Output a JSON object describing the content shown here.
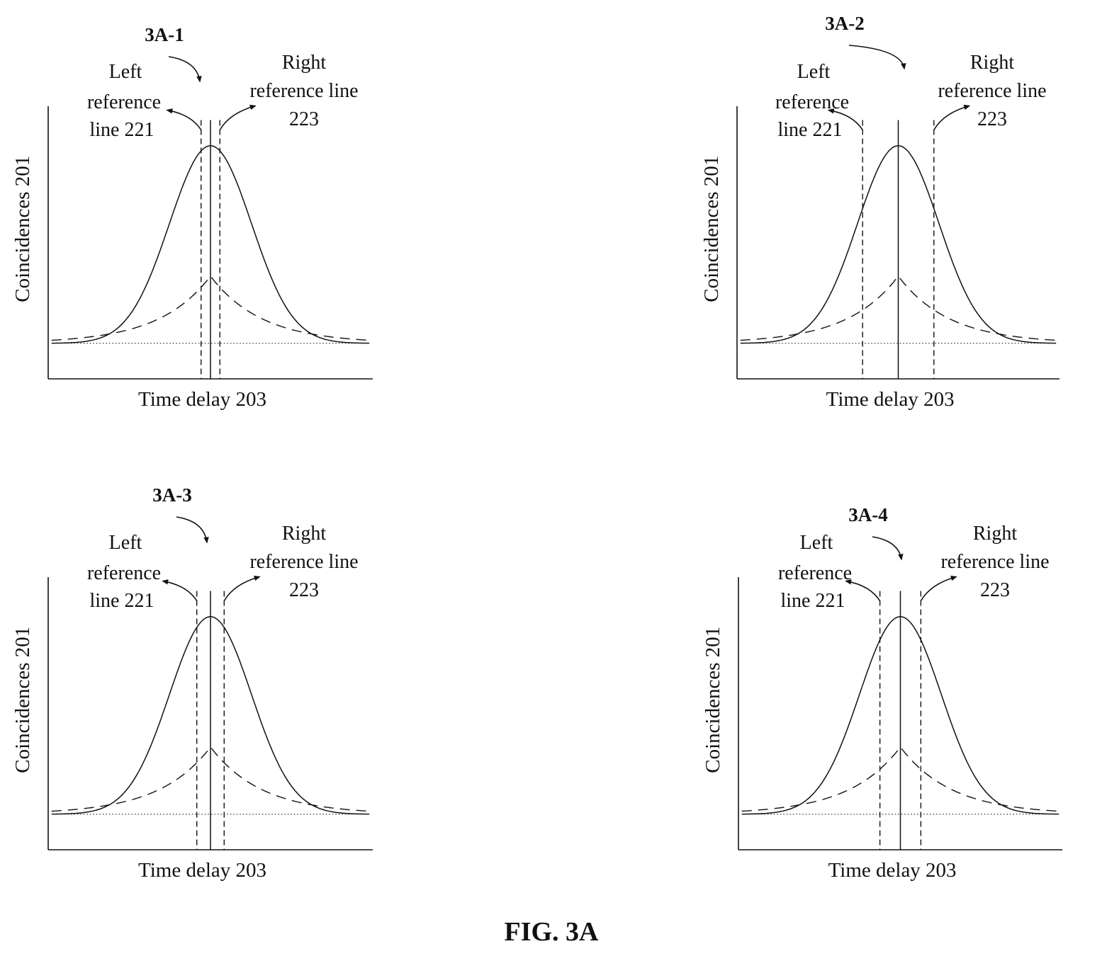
{
  "figure_caption": "FIG. 3A",
  "chart_data": [
    {
      "type": "line",
      "callout": "3A-1",
      "xlabel": "Time delay 203",
      "ylabel": "Coincidences 201",
      "left_ref": {
        "title": "Left",
        "l1": "reference",
        "l2": "line 221",
        "x": -0.55
      },
      "right_ref": {
        "title": "Right",
        "l1": "reference line",
        "l2": "223",
        "x": 0.55
      },
      "peak_line_x": 0,
      "series": [
        {
          "style": "solid",
          "amplitude": 1.0,
          "width": 2.4
        },
        {
          "style": "dashed",
          "amplitude": 0.34,
          "width": 3.0
        },
        {
          "style": "dotted",
          "baseline": 0.0
        }
      ],
      "xlim": [
        -9.5,
        9.5
      ],
      "ylim": [
        -0.18,
        1.2
      ]
    },
    {
      "type": "line",
      "callout": "3A-2",
      "xlabel": "Time delay 203",
      "ylabel": "Coincidences 201",
      "left_ref": {
        "title": "Left",
        "l1": "reference",
        "l2": "line 221",
        "x": -2.1
      },
      "right_ref": {
        "title": "Right",
        "l1": "reference line",
        "l2": "223",
        "x": 2.1
      },
      "peak_line_x": 0,
      "series": [
        {
          "style": "solid",
          "amplitude": 1.0,
          "width": 2.4
        },
        {
          "style": "dashed",
          "amplitude": 0.34,
          "width": 3.0
        },
        {
          "style": "dotted",
          "baseline": 0.0
        }
      ],
      "xlim": [
        -9.5,
        9.5
      ],
      "ylim": [
        -0.18,
        1.2
      ]
    },
    {
      "type": "line",
      "callout": "3A-3",
      "xlabel": "Time delay 203",
      "ylabel": "Coincidences 201",
      "left_ref": {
        "title": "Left",
        "l1": "reference",
        "l2": "line 221",
        "x": -0.8
      },
      "right_ref": {
        "title": "Right",
        "l1": "reference line",
        "l2": "223",
        "x": 0.8
      },
      "peak_line_x": 0,
      "series": [
        {
          "style": "solid",
          "amplitude": 1.0,
          "width": 2.4
        },
        {
          "style": "dashed",
          "amplitude": 0.34,
          "width": 3.0
        },
        {
          "style": "dotted",
          "baseline": 0.0
        }
      ],
      "xlim": [
        -9.5,
        9.5
      ],
      "ylim": [
        -0.18,
        1.2
      ]
    },
    {
      "type": "line",
      "callout": "3A-4",
      "xlabel": "Time delay 203",
      "ylabel": "Coincidences 201",
      "left_ref": {
        "title": "Left",
        "l1": "reference",
        "l2": "line 221",
        "x": -1.2
      },
      "right_ref": {
        "title": "Right",
        "l1": "reference line",
        "l2": "223",
        "x": 1.2
      },
      "peak_line_x": 0,
      "series": [
        {
          "style": "solid",
          "amplitude": 1.0,
          "width": 2.4
        },
        {
          "style": "dashed",
          "amplitude": 0.34,
          "width": 3.0
        },
        {
          "style": "dotted",
          "baseline": 0.0
        }
      ],
      "xlim": [
        -9.5,
        9.5
      ],
      "ylim": [
        -0.18,
        1.2
      ]
    }
  ]
}
